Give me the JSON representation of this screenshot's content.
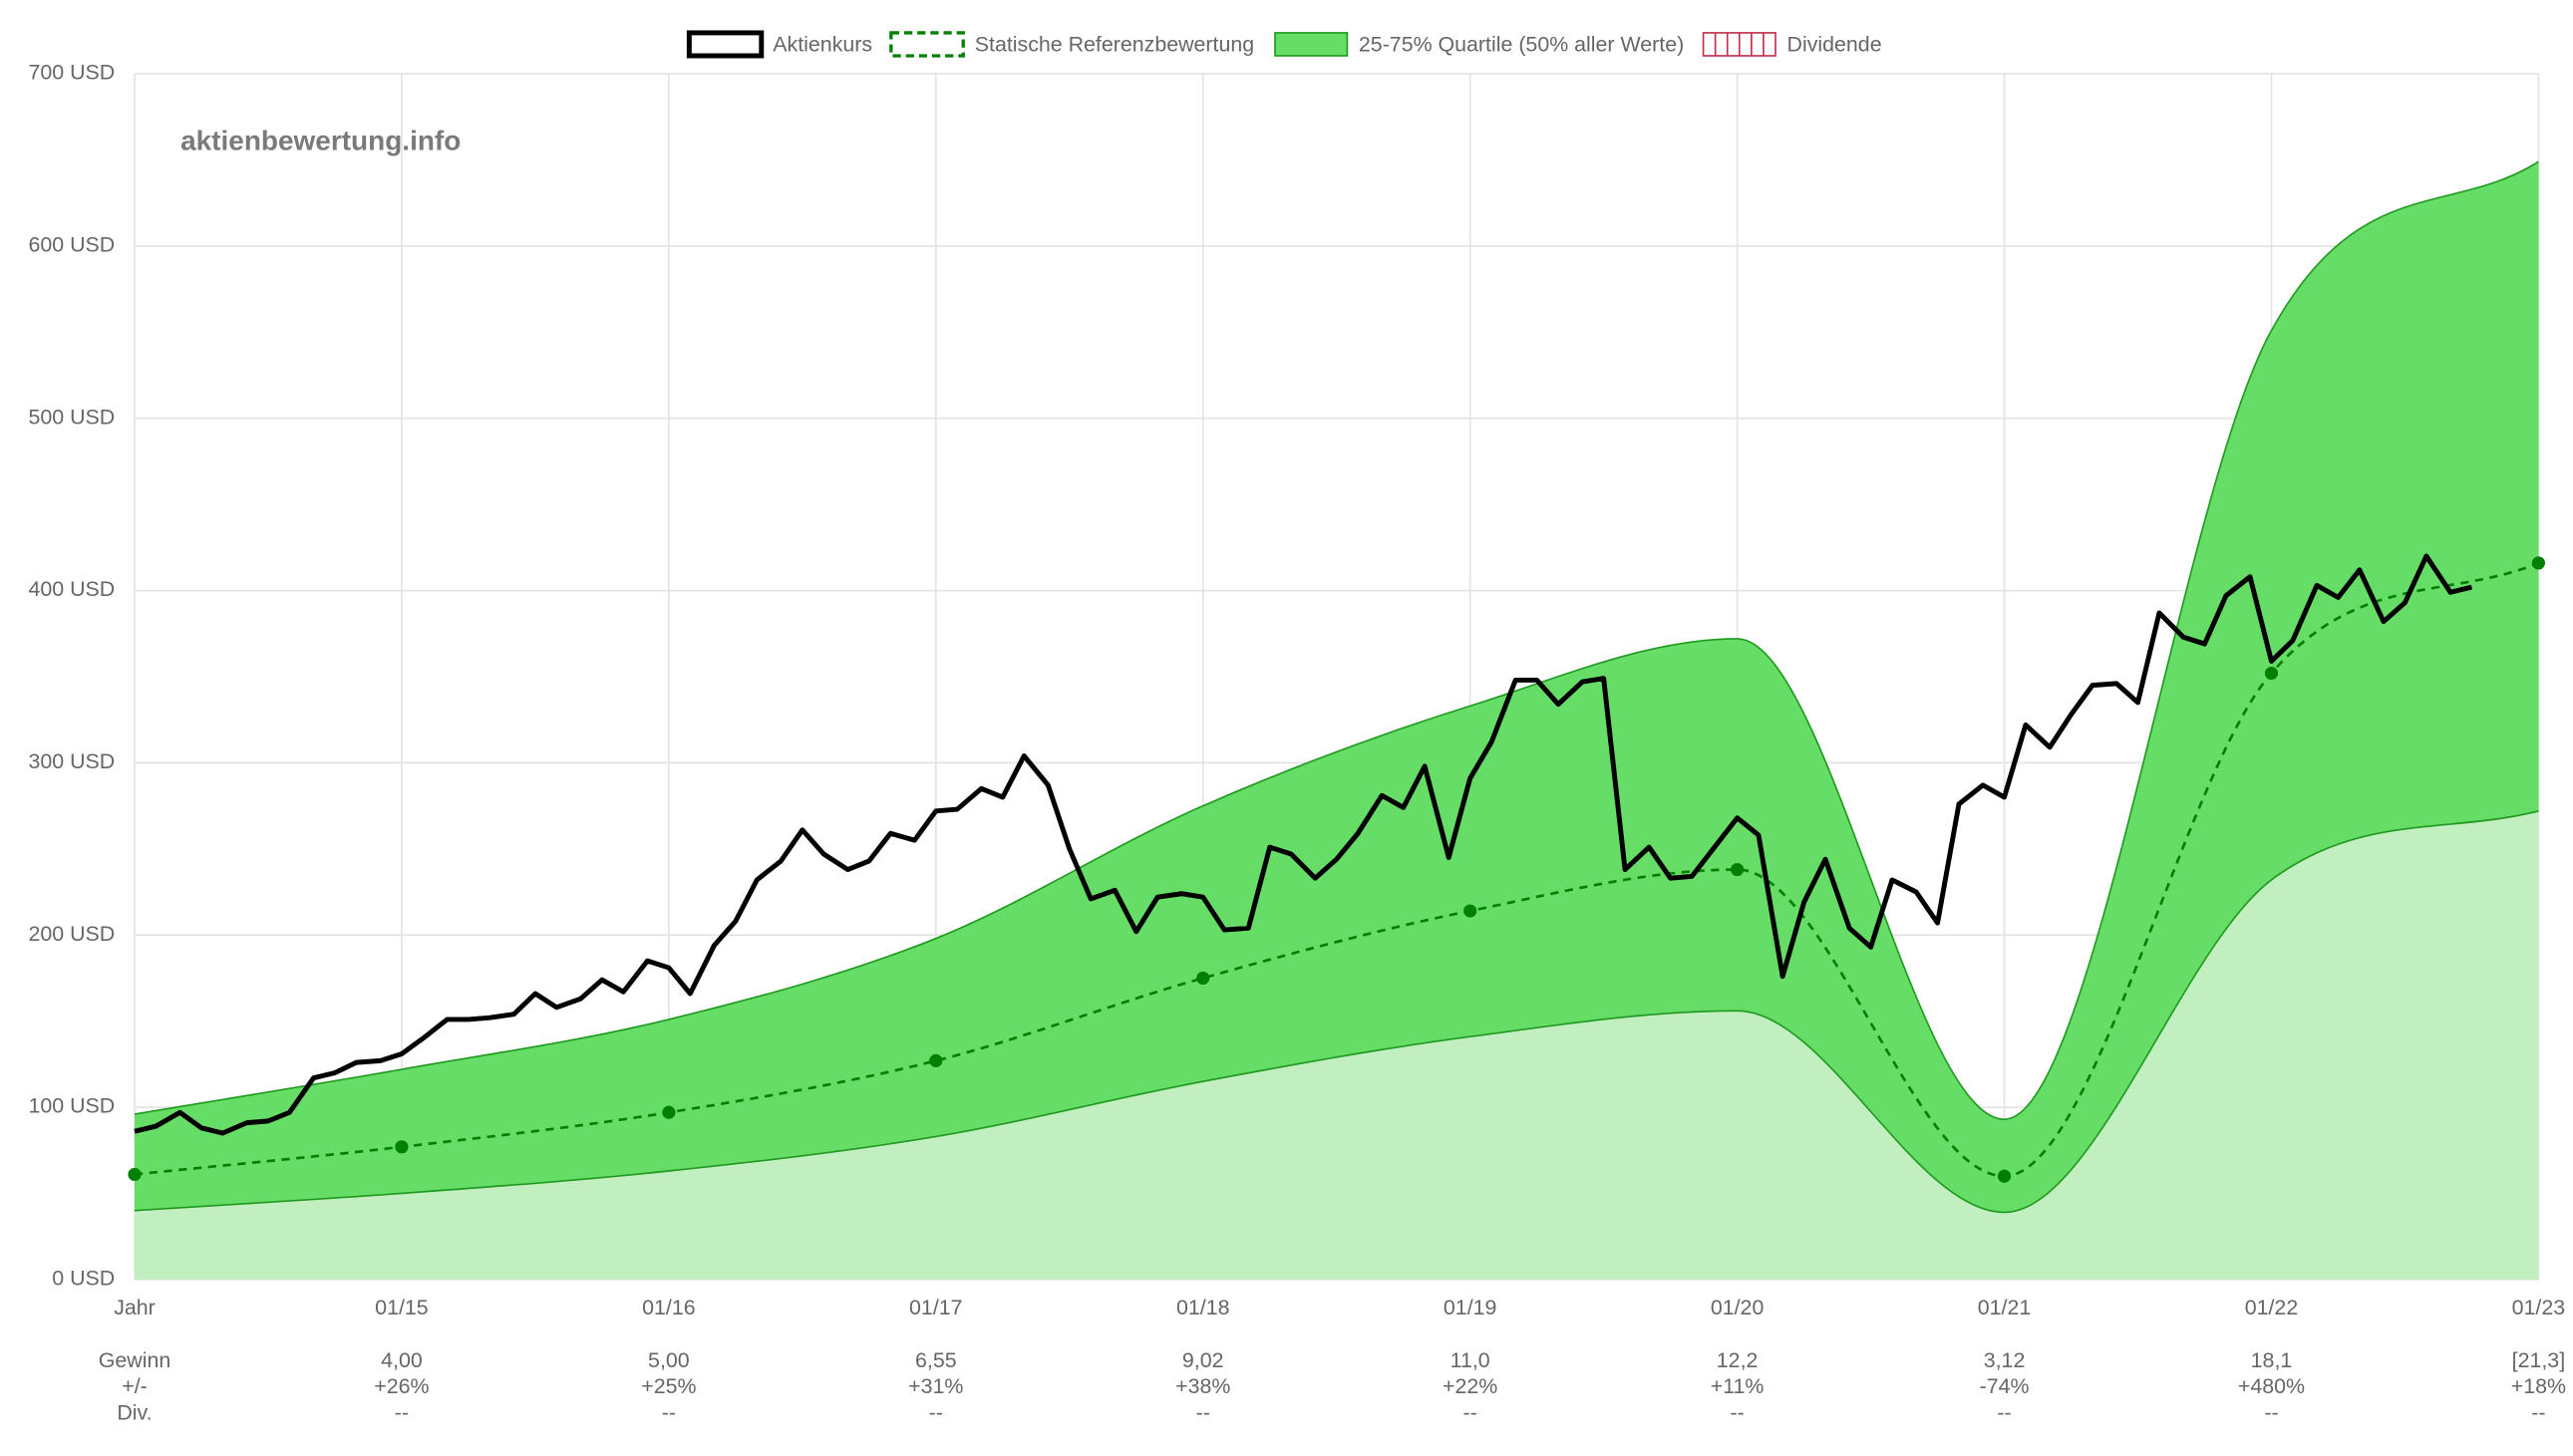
{
  "chart_data": {
    "type": "line",
    "watermark": "aktienbewertung.info",
    "grid": true,
    "xlim": [
      2014,
      2023
    ],
    "xticks": [
      {
        "value": 2014,
        "label": "Jahr"
      },
      {
        "value": 2015,
        "label": "01/15"
      },
      {
        "value": 2016,
        "label": "01/16"
      },
      {
        "value": 2017,
        "label": "01/17"
      },
      {
        "value": 2018,
        "label": "01/18"
      },
      {
        "value": 2019,
        "label": "01/19"
      },
      {
        "value": 2020,
        "label": "01/20"
      },
      {
        "value": 2021,
        "label": "01/21"
      },
      {
        "value": 2022,
        "label": "01/22"
      },
      {
        "value": 2023,
        "label": "01/23"
      }
    ],
    "ylim": [
      0,
      700
    ],
    "yticks": [
      {
        "value": 0,
        "label": "0 USD"
      },
      {
        "value": 100,
        "label": "100 USD"
      },
      {
        "value": 200,
        "label": "200 USD"
      },
      {
        "value": 300,
        "label": "300 USD"
      },
      {
        "value": 400,
        "label": "400 USD"
      },
      {
        "value": 500,
        "label": "500 USD"
      },
      {
        "value": 600,
        "label": "600 USD"
      },
      {
        "value": 700,
        "label": "700 USD"
      }
    ],
    "series": [
      {
        "name": "Aktienkurs",
        "color": "#000000",
        "x": [
          2014,
          2014.08,
          2014.17,
          2014.25,
          2014.33,
          2014.42,
          2014.5,
          2014.58,
          2014.67,
          2014.75,
          2014.83,
          2014.92,
          2015,
          2015.08,
          2015.17,
          2015.25,
          2015.33,
          2015.42,
          2015.5,
          2015.58,
          2015.67,
          2015.75,
          2015.83,
          2015.92,
          2016,
          2016.08,
          2016.17,
          2016.25,
          2016.33,
          2016.42,
          2016.5,
          2016.58,
          2016.67,
          2016.75,
          2016.83,
          2016.92,
          2017,
          2017.08,
          2017.17,
          2017.25,
          2017.33,
          2017.42,
          2017.5,
          2017.58,
          2017.67,
          2017.75,
          2017.83,
          2017.92,
          2018,
          2018.08,
          2018.17,
          2018.25,
          2018.33,
          2018.42,
          2018.5,
          2018.58,
          2018.67,
          2018.75,
          2018.83,
          2018.92,
          2019,
          2019.08,
          2019.17,
          2019.25,
          2019.33,
          2019.42,
          2019.5,
          2019.58,
          2019.67,
          2019.75,
          2019.83,
          2019.92,
          2020,
          2020.08,
          2020.17,
          2020.25,
          2020.33,
          2020.42,
          2020.5,
          2020.58,
          2020.67,
          2020.75,
          2020.83,
          2020.92,
          2021,
          2021.08,
          2021.17,
          2021.25,
          2021.33,
          2021.42,
          2021.5,
          2021.58,
          2021.67,
          2021.75,
          2021.83,
          2021.92,
          2022,
          2022.08,
          2022.17,
          2022.25,
          2022.33,
          2022.42,
          2022.5,
          2022.58,
          2022.67,
          2022.75
        ],
        "values": [
          86,
          89,
          97,
          88,
          85,
          91,
          92,
          97,
          117,
          120,
          126,
          127,
          131,
          140,
          151,
          151,
          152,
          154,
          166,
          158,
          163,
          174,
          167,
          185,
          181,
          166,
          194,
          208,
          232,
          243,
          261,
          247,
          238,
          243,
          259,
          255,
          272,
          273,
          285,
          280,
          304,
          287,
          250,
          221,
          226,
          202,
          222,
          224,
          222,
          203,
          204,
          251,
          247,
          233,
          244,
          259,
          281,
          274,
          298,
          245,
          291,
          312,
          348,
          348,
          334,
          347,
          349,
          238,
          251,
          233,
          234,
          252,
          268,
          258,
          176,
          219,
          244,
          204,
          193,
          232,
          225,
          207,
          276,
          287,
          280,
          322,
          309,
          328,
          345,
          346,
          335,
          387,
          373,
          369,
          397,
          408,
          359,
          371,
          403,
          396,
          412,
          382,
          393,
          420,
          399,
          402
        ]
      },
      {
        "name": "Statische Referenzbewertung",
        "color": "#008000",
        "x": [
          2014,
          2015,
          2016,
          2017,
          2018,
          2019,
          2020,
          2021,
          2022,
          2023
        ],
        "values": [
          61,
          77,
          97,
          127,
          175,
          214,
          238,
          60,
          352,
          416
        ]
      },
      {
        "name": "25-75% Quartile (50% aller Werte)",
        "color": "#66dd66",
        "lower_color": "#c2efc0",
        "x": [
          2014,
          2015,
          2016,
          2017,
          2018,
          2019,
          2020,
          2021,
          2022,
          2023
        ],
        "values": [
          96,
          122,
          151,
          198,
          275,
          333,
          372,
          93,
          551,
          649
        ],
        "lower": [
          40,
          50,
          63,
          83,
          115,
          141,
          156,
          39,
          232,
          272
        ]
      },
      {
        "name": "Dividende",
        "color": "#c0304a",
        "values": []
      }
    ],
    "footer_rows": [
      {
        "label": "Gewinn",
        "cells": [
          "4,00",
          "5,00",
          "6,55",
          "9,02",
          "11,0",
          "12,2",
          "3,12",
          "18,1",
          "[21,3]"
        ]
      },
      {
        "label": "+/-",
        "cells": [
          "+26%",
          "+25%",
          "+31%",
          "+38%",
          "+22%",
          "+11%",
          "-74%",
          "+480%",
          "+18%"
        ]
      },
      {
        "label": "Div.",
        "cells": [
          "--",
          "--",
          "--",
          "--",
          "--",
          "--",
          "--",
          "--",
          "--"
        ]
      }
    ]
  }
}
